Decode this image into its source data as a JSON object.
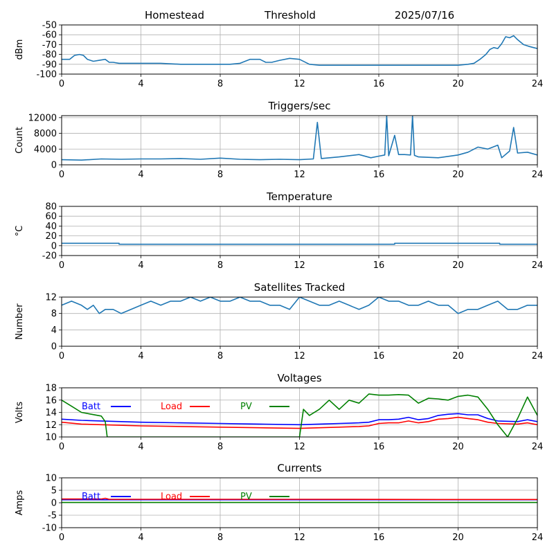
{
  "header": {
    "site": "Homestead",
    "mode": "Threshold",
    "date": "2025/07/16"
  },
  "colors": {
    "default": "#1f77b4",
    "batt": "#0000ff",
    "load": "#ff0000",
    "pv": "#008000",
    "grid": "#b0b0b0"
  },
  "x_axis": {
    "min": 0,
    "max": 24,
    "ticks": [
      0,
      4,
      8,
      12,
      16,
      20,
      24
    ]
  },
  "chart_data": [
    {
      "type": "line",
      "title": "",
      "ylabel": "dBm",
      "ylim": [
        -100,
        -50
      ],
      "yticks": [
        -100,
        -90,
        -80,
        -70,
        -60,
        -50
      ],
      "grid": true,
      "series": [
        {
          "color": "default",
          "x": [
            0,
            0.4,
            0.65,
            0.9,
            1.1,
            1.3,
            1.6,
            1.9,
            2.2,
            2.4,
            2.6,
            2.9,
            3.2,
            4,
            5,
            6,
            7,
            8,
            8.5,
            9,
            9.5,
            10,
            10.3,
            10.6,
            11,
            11.5,
            12,
            12.5,
            13,
            13.5,
            14,
            16,
            18,
            19,
            20,
            20.5,
            20.8,
            21.1,
            21.4,
            21.6,
            21.8,
            22,
            22.2,
            22.4,
            22.6,
            22.8,
            23,
            23.3,
            23.6,
            23.8,
            24
          ],
          "y": [
            -85,
            -85,
            -81,
            -80,
            -81,
            -85,
            -87,
            -86,
            -85,
            -88,
            -88,
            -89,
            -89,
            -89,
            -89,
            -90,
            -90,
            -90,
            -90,
            -89,
            -85,
            -85,
            -88,
            -88,
            -86,
            -84,
            -85,
            -90,
            -91,
            -91,
            -91,
            -91,
            -91,
            -91,
            -91,
            -90,
            -89,
            -85,
            -80,
            -75,
            -73,
            -74,
            -69,
            -62,
            -63,
            -61,
            -65,
            -70,
            -72,
            -73,
            -74
          ]
        }
      ]
    },
    {
      "type": "line",
      "title": "Triggers/sec",
      "ylabel": "Count",
      "ylim": [
        0,
        12500
      ],
      "yticks": [
        0,
        4000,
        8000,
        12000
      ],
      "grid": true,
      "series": [
        {
          "color": "default",
          "x": [
            0,
            1,
            2,
            3,
            4,
            5,
            6,
            7,
            8,
            9,
            10,
            11,
            12,
            12.7,
            12.9,
            13.1,
            14,
            15,
            15.6,
            16,
            16.3,
            16.4,
            16.5,
            16.8,
            17,
            17.3,
            17.6,
            17.7,
            17.8,
            18,
            19,
            20,
            20.5,
            21,
            21.5,
            22,
            22.2,
            22.6,
            22.8,
            23,
            23.5,
            24
          ],
          "y": [
            1300,
            1200,
            1500,
            1400,
            1500,
            1500,
            1600,
            1400,
            1700,
            1400,
            1300,
            1400,
            1300,
            1500,
            10800,
            1600,
            2000,
            2600,
            1800,
            2200,
            2500,
            12500,
            2300,
            7500,
            2600,
            2600,
            2500,
            12500,
            2400,
            2000,
            1800,
            2500,
            3200,
            4500,
            4000,
            5000,
            1800,
            3500,
            9500,
            3000,
            3200,
            2500
          ]
        }
      ]
    },
    {
      "type": "line",
      "title": "Temperature",
      "ylabel": "°C",
      "ylim": [
        -20,
        80
      ],
      "yticks": [
        -20,
        0,
        20,
        40,
        60,
        80
      ],
      "grid": true,
      "series": [
        {
          "color": "default",
          "x": [
            0,
            2.9,
            2.9,
            16.8,
            16.8,
            22.1,
            22.1,
            24
          ],
          "y": [
            5,
            5,
            3,
            3,
            5,
            5,
            3,
            3
          ]
        }
      ]
    },
    {
      "type": "line",
      "title": "Satellites Tracked",
      "ylabel": "Number",
      "ylim": [
        0,
        12
      ],
      "yticks": [
        0,
        4,
        8,
        12
      ],
      "grid": true,
      "series": [
        {
          "color": "default",
          "x": [
            0,
            0.5,
            1,
            1.3,
            1.6,
            1.9,
            2.2,
            2.6,
            3,
            3.5,
            4,
            4.5,
            5,
            5.5,
            6,
            6.5,
            7,
            7.5,
            8,
            8.5,
            9,
            9.5,
            10,
            10.5,
            11,
            11.5,
            12,
            12.5,
            13,
            13.5,
            14,
            14.5,
            15,
            15.5,
            16,
            16.5,
            17,
            17.5,
            18,
            18.5,
            19,
            19.5,
            20,
            20.5,
            21,
            21.5,
            22,
            22.5,
            23,
            23.5,
            24
          ],
          "y": [
            10,
            11,
            10,
            9,
            10,
            8,
            9,
            9,
            8,
            9,
            10,
            11,
            10,
            11,
            11,
            12,
            11,
            12,
            11,
            11,
            12,
            11,
            11,
            10,
            10,
            9,
            12,
            11,
            10,
            10,
            11,
            10,
            9,
            10,
            12,
            11,
            11,
            10,
            10,
            11,
            10,
            10,
            8,
            9,
            9,
            10,
            11,
            9,
            9,
            10,
            10
          ]
        }
      ]
    },
    {
      "type": "line",
      "title": "Voltages",
      "ylabel": "Volts",
      "ylim": [
        10,
        18
      ],
      "yticks": [
        10,
        12,
        14,
        16,
        18
      ],
      "grid": true,
      "legend": [
        "Batt",
        "Load",
        "PV"
      ],
      "series": [
        {
          "name": "Batt",
          "color": "batt",
          "x": [
            0,
            1,
            2,
            4,
            6,
            8,
            10,
            12,
            13,
            14,
            15,
            15.5,
            16,
            16.5,
            17,
            17.5,
            18,
            18.5,
            19,
            19.5,
            20,
            20.5,
            21,
            21.5,
            22,
            23,
            23.5,
            24
          ],
          "y": [
            12.9,
            12.7,
            12.6,
            12.4,
            12.3,
            12.2,
            12.1,
            12.0,
            12.1,
            12.2,
            12.3,
            12.4,
            12.8,
            12.8,
            12.9,
            13.2,
            12.8,
            13.0,
            13.5,
            13.7,
            13.8,
            13.6,
            13.6,
            13.0,
            12.6,
            12.5,
            12.8,
            12.5
          ]
        },
        {
          "name": "Load",
          "color": "load",
          "x": [
            0,
            1,
            2,
            4,
            6,
            8,
            10,
            12,
            13,
            14,
            15,
            15.5,
            16,
            16.5,
            17,
            17.5,
            18,
            18.5,
            19,
            19.5,
            20,
            20.5,
            21,
            21.5,
            22,
            23,
            23.5,
            24
          ],
          "y": [
            12.4,
            12.1,
            12.0,
            11.8,
            11.7,
            11.6,
            11.5,
            11.4,
            11.5,
            11.6,
            11.7,
            11.8,
            12.2,
            12.3,
            12.3,
            12.6,
            12.3,
            12.5,
            12.9,
            13.0,
            13.2,
            13.0,
            12.8,
            12.4,
            12.2,
            12.1,
            12.3,
            12.0
          ]
        },
        {
          "name": "PV",
          "color": "pv",
          "x": [
            0,
            0.5,
            1,
            1.5,
            2,
            2.2,
            2.3,
            12,
            12.2,
            12.5,
            13,
            13.5,
            14,
            14.5,
            15,
            15.5,
            16,
            16.5,
            17,
            17.5,
            18,
            18.5,
            19,
            19.5,
            20,
            20.5,
            21,
            21.5,
            22,
            22.5,
            23,
            23.5,
            24
          ],
          "y": [
            16.0,
            15.0,
            14.0,
            13.7,
            13.4,
            12.5,
            10.0,
            10.0,
            14.5,
            13.5,
            14.5,
            16.0,
            14.5,
            16.0,
            15.5,
            17.0,
            16.8,
            16.8,
            16.9,
            16.8,
            15.5,
            16.3,
            16.2,
            16.0,
            16.6,
            16.8,
            16.5,
            14.5,
            12.0,
            10.0,
            13.0,
            16.5,
            13.5
          ]
        }
      ]
    },
    {
      "type": "line",
      "title": "Currents",
      "ylabel": "Amps",
      "ylim": [
        -10,
        10
      ],
      "yticks": [
        -10,
        -5,
        0,
        5,
        10
      ],
      "grid": true,
      "legend": [
        "Batt",
        "Load",
        "PV"
      ],
      "series": [
        {
          "name": "Batt",
          "color": "batt",
          "x": [
            0,
            24
          ],
          "y": [
            1.2,
            1.2
          ]
        },
        {
          "name": "Load",
          "color": "load",
          "x": [
            0,
            2,
            2.2,
            2.4,
            4,
            12,
            20,
            24
          ],
          "y": [
            1.5,
            1.5,
            1.8,
            1.4,
            1.4,
            1.4,
            1.3,
            1.3
          ]
        },
        {
          "name": "PV",
          "color": "pv",
          "x": [
            0,
            24
          ],
          "y": [
            0.1,
            0.1
          ]
        }
      ]
    }
  ]
}
